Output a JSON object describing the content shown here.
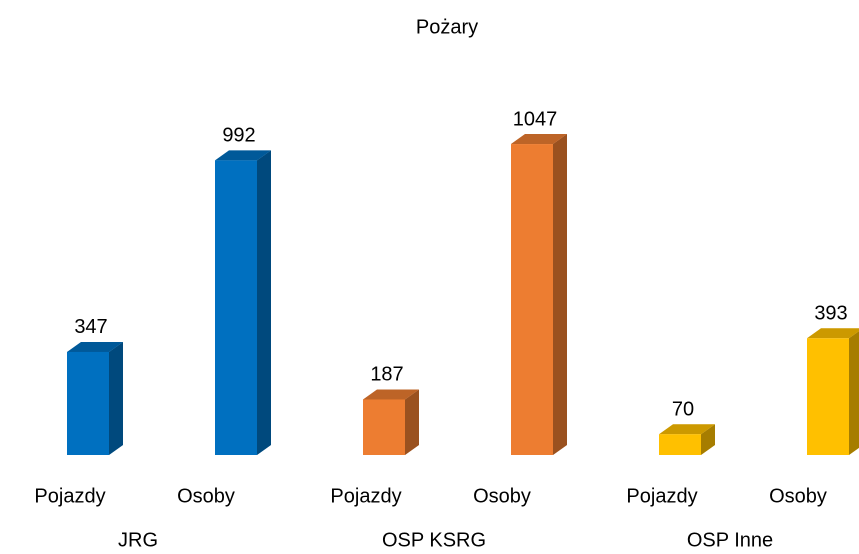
{
  "chart_data": {
    "type": "bar3d",
    "title": "Pożary",
    "groups": [
      {
        "name": "JRG",
        "color": "#0070c0",
        "categories": [
          "Pojazdy",
          "Osoby"
        ],
        "values": [
          347,
          992
        ]
      },
      {
        "name": "OSP KSRG",
        "color": "#ed7d31",
        "categories": [
          "Pojazdy",
          "Osoby"
        ],
        "values": [
          187,
          1047
        ]
      },
      {
        "name": "OSP Inne",
        "color": "#ffc000",
        "categories": [
          "Pojazdy",
          "Osoby"
        ],
        "values": [
          70,
          393
        ]
      }
    ]
  }
}
